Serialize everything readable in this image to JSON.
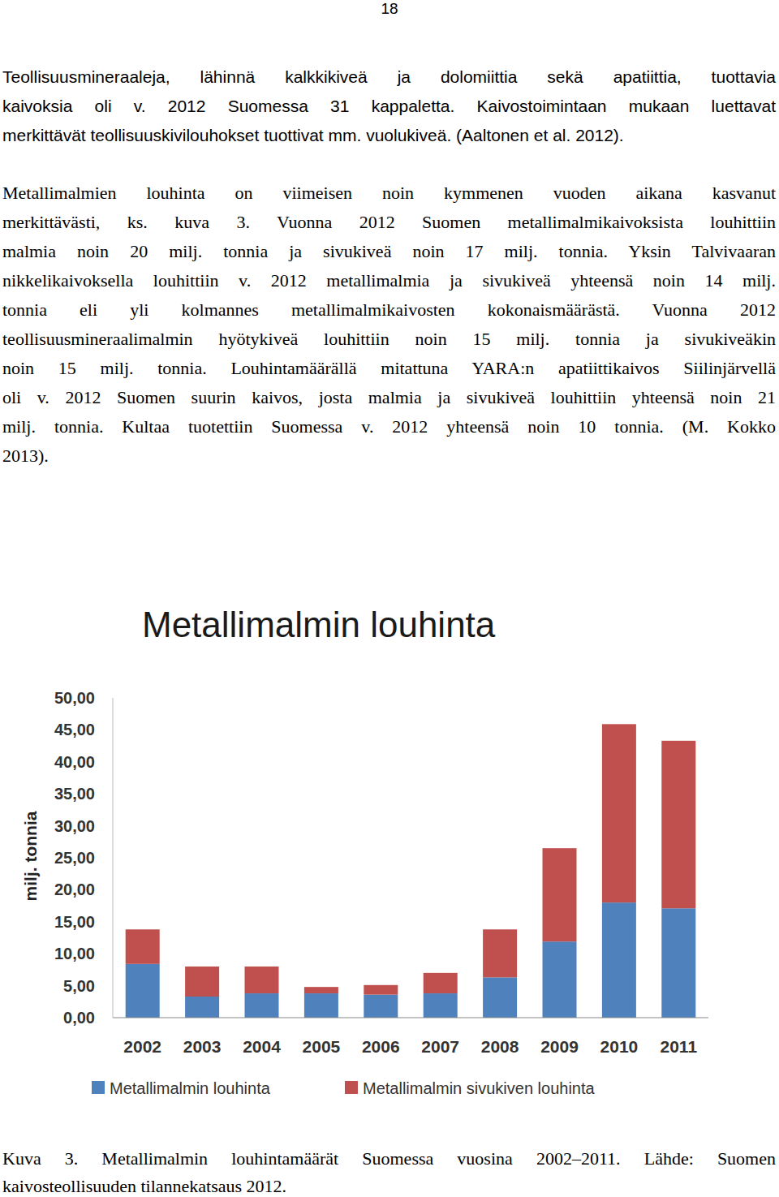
{
  "page_number": "18",
  "paragraphs": [
    [
      "Teollisuusmineraaleja, lähinnä kalkkikiveä ja dolomiittia sekä apatiittia, tuottavia",
      "kaivoksia oli v. 2012 Suomessa 31 kappaletta. Kaivostoimintaan mukaan luettavat",
      "merkittävät teollisuuskivilouhokset tuottivat mm. vuolukiveä. (Aaltonen et al. 2012)."
    ],
    [
      "Metallimalmien louhinta on viimeisen noin kymmenen vuoden aikana kasvanut",
      "merkittävästi, ks. kuva 3. Vuonna 2012 Suomen metallimalmikaivoksista louhittiin",
      "malmia noin 20 milj. tonnia ja sivukiveä noin 17 milj. tonnia. Yksin Talvivaaran",
      "nikkelikaivoksella louhittiin v. 2012 metallimalmia ja sivukiveä yhteensä noin 14 milj.",
      "tonnia eli yli kolmannes metallimalmikaivosten kokonaismäärästä. Vuonna 2012",
      "teollisuusmineraalimalmin hyötykiveä louhittiin noin 15 milj. tonnia ja sivukiveäkin",
      "noin 15 milj. tonnia. Louhintamäärällä mitattuna YARA:n apatiittikaivos Siilinjärvellä",
      "oli v. 2012 Suomen suurin kaivos, josta malmia ja sivukiveä louhittiin yhteensä noin 21",
      "milj. tonnia. Kultaa tuotettiin Suomessa v. 2012 yhteensä noin 10 tonnia. (M. Kokko",
      "2013)."
    ]
  ],
  "chart_data": {
    "type": "bar",
    "stacked": true,
    "title": "Metallimalmin louhinta",
    "y_label": "milj. tonnia",
    "categories": [
      "2002",
      "2003",
      "2004",
      "2005",
      "2006",
      "2007",
      "2008",
      "2009",
      "2010",
      "2011"
    ],
    "series": [
      {
        "name": "Metallimalmin louhinta",
        "color": "#4f81bd",
        "values": [
          8.4,
          3.3,
          3.8,
          3.8,
          3.6,
          3.8,
          6.3,
          11.9,
          18.0,
          17.1
        ]
      },
      {
        "name": "Metallimalmin sivukiven louhinta",
        "color": "#c0504d",
        "values": [
          5.4,
          4.7,
          4.2,
          1.0,
          1.5,
          3.2,
          7.5,
          14.6,
          27.9,
          26.2
        ]
      }
    ],
    "ylim": [
      0,
      50
    ],
    "yticks": [
      {
        "value": 0,
        "label": "0,00"
      },
      {
        "value": 5,
        "label": "5,00"
      },
      {
        "value": 10,
        "label": "10,00"
      },
      {
        "value": 15,
        "label": "15,00"
      },
      {
        "value": 20,
        "label": "20,00"
      },
      {
        "value": 25,
        "label": "25,00"
      },
      {
        "value": 30,
        "label": "30,00"
      },
      {
        "value": 35,
        "label": "35,00"
      },
      {
        "value": 40,
        "label": "40,00"
      },
      {
        "value": 45,
        "label": "45,00"
      },
      {
        "value": 50,
        "label": "50,00"
      }
    ],
    "grid": false,
    "legend": "bottom"
  },
  "caption": [
    "Kuva 3. Metallimalmin louhintamäärät Suomessa vuosina 2002–2011. Lähde: Suomen",
    "kaivosteollisuuden tilannekatsaus 2012."
  ]
}
